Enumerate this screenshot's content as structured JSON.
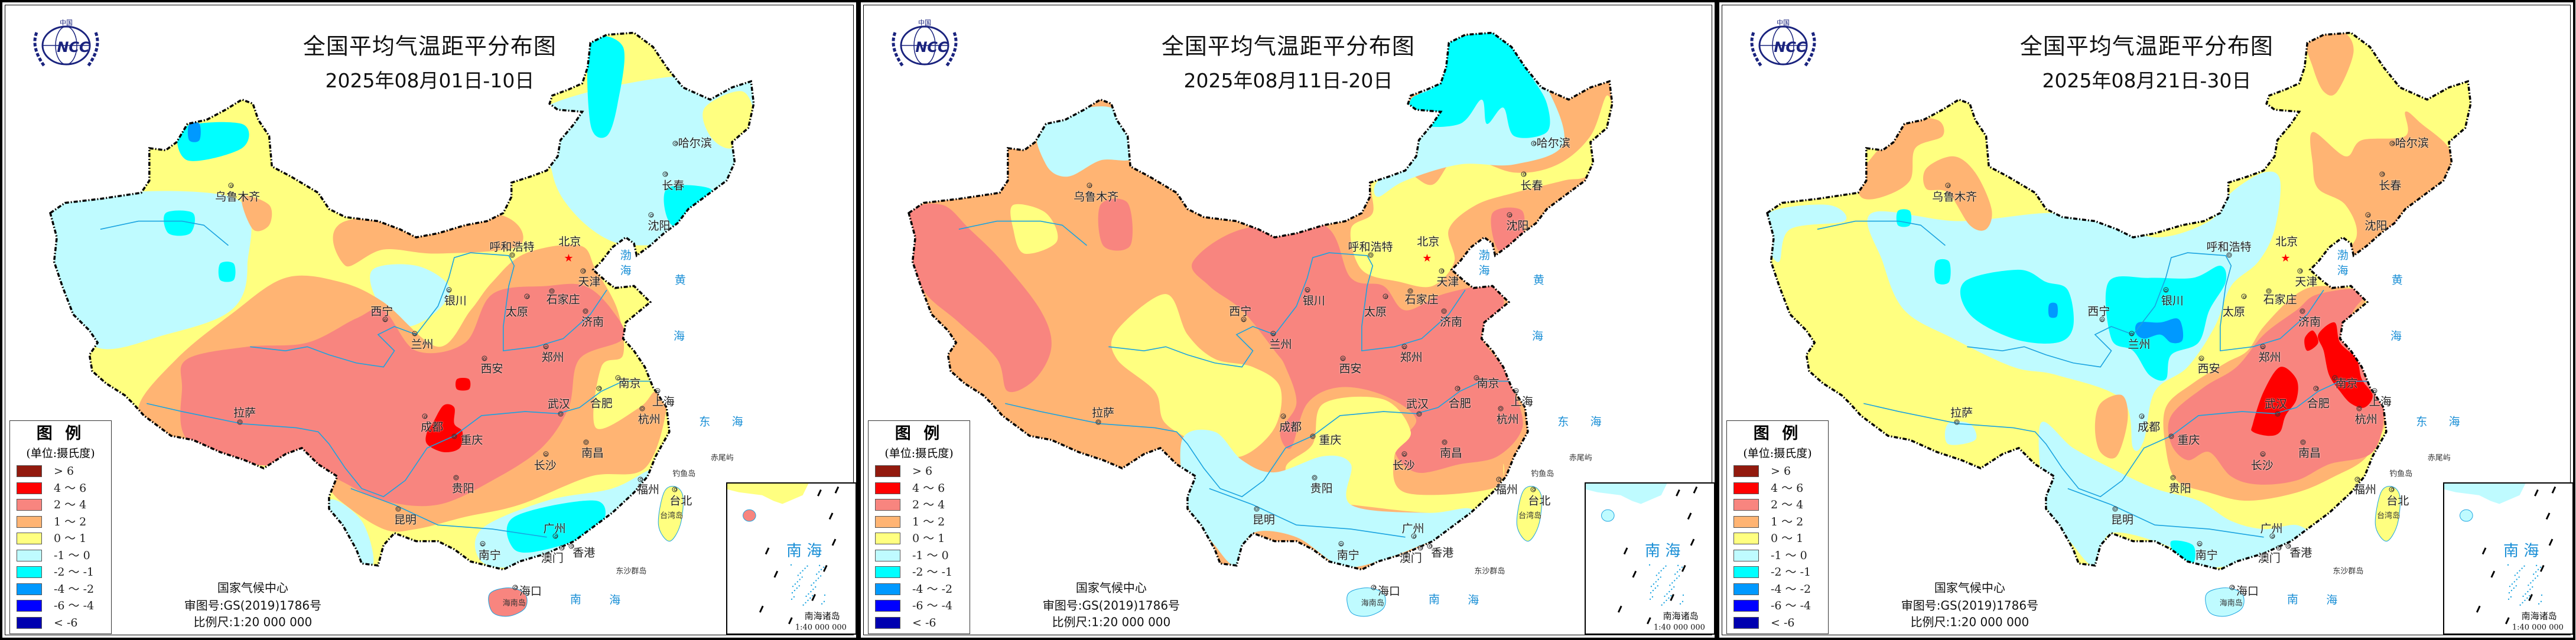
{
  "panels": [
    {
      "title": "全国平均气温距平分布图",
      "date": "2025年08月01日-10日"
    },
    {
      "title": "全国平均气温距平分布图",
      "date": "2025年08月11日-20日"
    },
    {
      "title": "全国平均气温距平分布图",
      "date": "2025年08月21日-30日"
    }
  ],
  "logo": {
    "text_top": "中国",
    "text_center": "NCC",
    "color": "#1a237e"
  },
  "legend": {
    "title": "图 例",
    "unit": "(单位:摄氏度)",
    "items": [
      {
        "label": "> 6",
        "color": "#921a0e"
      },
      {
        "label": "4 ～ 6",
        "color": "#ff0000"
      },
      {
        "label": "2 ～ 4",
        "color": "#f8857f"
      },
      {
        "label": "1 ～ 2",
        "color": "#ffb473"
      },
      {
        "label": "0 ～ 1",
        "color": "#ffff80"
      },
      {
        "label": "-1 ～ 0",
        "color": "#bffbff"
      },
      {
        "label": "-2 ～ -1",
        "color": "#00ffff"
      },
      {
        "label": "-4 ～ -2",
        "color": "#0099ff"
      },
      {
        "label": "-6 ～ -4",
        "color": "#0000ff"
      },
      {
        "label": "< -6",
        "color": "#0000b0"
      }
    ]
  },
  "footer": {
    "org": "国家气候中心",
    "approval": "审图号:GS(2019)1786号",
    "scale": "比例尺:1:20 000 000"
  },
  "inset": {
    "sea_label": "南 海",
    "title": "南海诸岛",
    "scale": "1:40 000 000"
  },
  "cities": [
    "乌鲁木齐",
    "哈尔滨",
    "长春",
    "沈阳",
    "呼和浩特",
    "北京",
    "天津",
    "银川",
    "西宁",
    "兰州",
    "太原",
    "石家庄",
    "济南",
    "郑州",
    "西安",
    "南京",
    "合肥",
    "上海",
    "杭州",
    "武汉",
    "成都",
    "重庆",
    "长沙",
    "南昌",
    "贵阳",
    "昆明",
    "福州",
    "台北",
    "南宁",
    "广州",
    "澳门",
    "香港",
    "海口",
    "拉萨"
  ],
  "geo_labels": [
    "钓鱼岛",
    "赤尾屿",
    "台湾岛",
    "东沙群岛",
    "海南岛"
  ],
  "seas": [
    "南",
    "海",
    "渤",
    "海",
    "黄",
    "海",
    "东",
    "海"
  ],
  "colors": {
    "river": "#1aa3e0",
    "border": "#000000",
    "capital_star": "#ff0000"
  }
}
